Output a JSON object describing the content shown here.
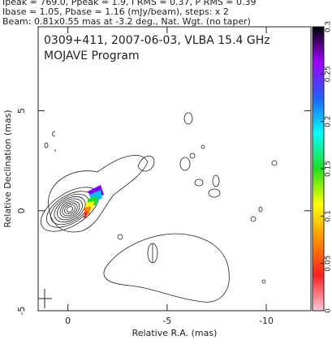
{
  "chart_data": {
    "type": "contour",
    "header": [
      "Ipeak = 769.0, Ppeak = 1.9, I RMS = 0.37, P RMS = 0.39",
      "Ibase = 1.05, Pbase = 1.16 (mJy/beam), steps: x 2",
      "Beam: 0.81x0.55 mas at -3.2 deg., Nat. Wgt. (no taper)"
    ],
    "title": "0309+411, 2007-06-03, VLBA 15.4 GHz",
    "subtitle": "MOJAVE Program",
    "xlabel": "Relative R.A. (mas)",
    "ylabel": "Relative Declination (mas)",
    "xlim": [
      1.5,
      -12.25
    ],
    "xticks": [
      0,
      -5,
      -10
    ],
    "ylim": [
      -5,
      9.2
    ],
    "yticks": [
      -5,
      0,
      5
    ],
    "colorbar": {
      "lim": [
        0,
        0.3
      ],
      "ticks": [
        0,
        0.05,
        0.1,
        0.15,
        0.2,
        0.25,
        0.3
      ],
      "colors": [
        "#ffc8d8",
        "#ff2020",
        "#ff9000",
        "#ffff00",
        "#20e020",
        "#00ffff",
        "#2060ff",
        "#a000ff",
        "#000000"
      ]
    }
  }
}
